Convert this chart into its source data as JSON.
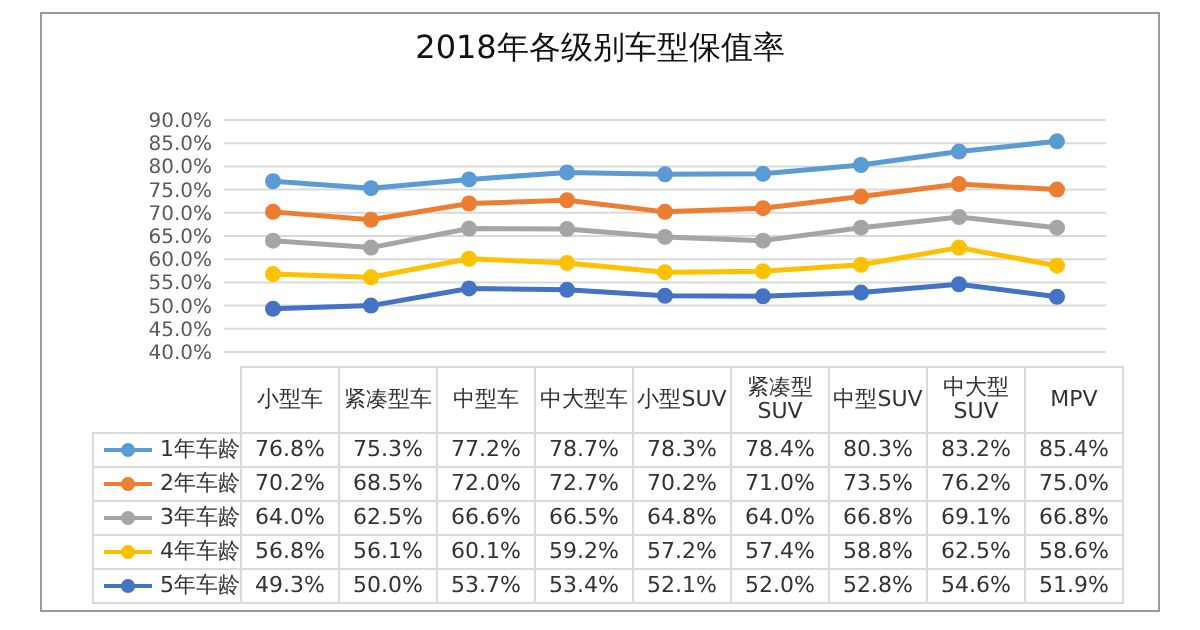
{
  "chart_data": {
    "type": "line",
    "title": "2018年各级别车型保值率",
    "categories": [
      "小型车",
      "紧凑型车",
      "中型车",
      "中大型车",
      "小型SUV",
      "紧凑型SUV",
      "中型SUV",
      "中大型SUV",
      "MPV"
    ],
    "series": [
      {
        "name": "1年车龄",
        "color": "#5b9bd5",
        "values": [
          76.8,
          75.3,
          77.2,
          78.7,
          78.3,
          78.4,
          80.3,
          83.2,
          85.4
        ],
        "value_labels": [
          "76.8%",
          "75.3%",
          "77.2%",
          "78.7%",
          "78.3%",
          "78.4%",
          "80.3%",
          "83.2%",
          "85.4%"
        ]
      },
      {
        "name": "2年车龄",
        "color": "#ed7d31",
        "values": [
          70.2,
          68.5,
          72.0,
          72.7,
          70.2,
          71.0,
          73.5,
          76.2,
          75.0
        ],
        "value_labels": [
          "70.2%",
          "68.5%",
          "72.0%",
          "72.7%",
          "70.2%",
          "71.0%",
          "73.5%",
          "76.2%",
          "75.0%"
        ]
      },
      {
        "name": "3年车龄",
        "color": "#a5a5a5",
        "values": [
          64.0,
          62.5,
          66.6,
          66.5,
          64.8,
          64.0,
          66.8,
          69.1,
          66.8
        ],
        "value_labels": [
          "64.0%",
          "62.5%",
          "66.6%",
          "66.5%",
          "64.8%",
          "64.0%",
          "66.8%",
          "69.1%",
          "66.8%"
        ]
      },
      {
        "name": "4年车龄",
        "color": "#ffc000",
        "values": [
          56.8,
          56.1,
          60.1,
          59.2,
          57.2,
          57.4,
          58.8,
          62.5,
          58.6
        ],
        "value_labels": [
          "56.8%",
          "56.1%",
          "60.1%",
          "59.2%",
          "57.2%",
          "57.4%",
          "58.8%",
          "62.5%",
          "58.6%"
        ]
      },
      {
        "name": "5年车龄",
        "color": "#4472c4",
        "values": [
          49.3,
          50.0,
          53.7,
          53.4,
          52.1,
          52.0,
          52.8,
          54.6,
          51.9
        ],
        "value_labels": [
          "49.3%",
          "50.0%",
          "53.7%",
          "53.4%",
          "52.1%",
          "52.0%",
          "52.8%",
          "54.6%",
          "51.9%"
        ]
      }
    ],
    "ylim": [
      40,
      90
    ],
    "yticks": [
      {
        "value": 40,
        "label": "40.0%"
      },
      {
        "value": 45,
        "label": "45.0%"
      },
      {
        "value": 50,
        "label": "50.0%"
      },
      {
        "value": 55,
        "label": "55.0%"
      },
      {
        "value": 60,
        "label": "60.0%"
      },
      {
        "value": 65,
        "label": "65.0%"
      },
      {
        "value": 70,
        "label": "70.0%"
      },
      {
        "value": 75,
        "label": "75.0%"
      },
      {
        "value": 80,
        "label": "80.0%"
      },
      {
        "value": 85,
        "label": "85.0%"
      },
      {
        "value": 90,
        "label": "90.0%"
      }
    ],
    "grid": "y",
    "legend": "bottom",
    "marker": "circle",
    "line_style": "solid"
  }
}
